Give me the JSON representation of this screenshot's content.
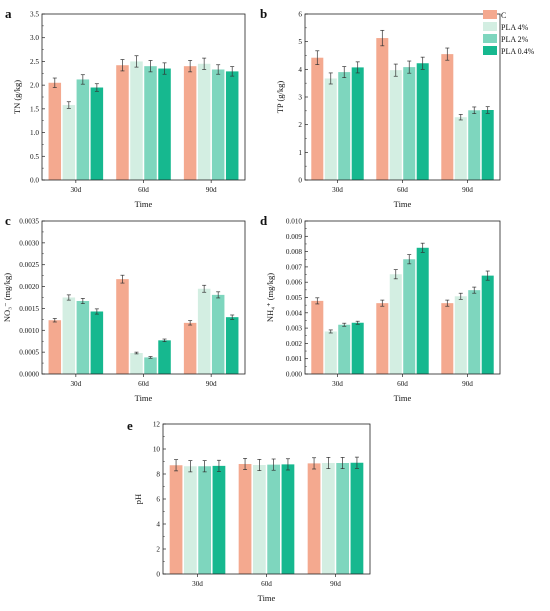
{
  "legend": [
    {
      "name": "C",
      "color": "#f4a98f"
    },
    {
      "name": "PLA 4%",
      "color": "#d3eee2"
    },
    {
      "name": "PLA 2%",
      "color": "#7ed6be"
    },
    {
      "name": "PLA 0.4%",
      "color": "#16b88f"
    }
  ],
  "chart_data": [
    {
      "panel": "a",
      "type": "bar",
      "categories": [
        "30d",
        "60d",
        "90d"
      ],
      "xlabel": "Time",
      "ylabel": "TN (g/kg)",
      "ylim": [
        0,
        3.5
      ],
      "yticks": [
        "0.0",
        "0.5",
        "1.0",
        "1.5",
        "2.0",
        "2.5",
        "3.0",
        "3.5"
      ],
      "series": [
        {
          "name": "C",
          "values": [
            2.05,
            2.42,
            2.4
          ],
          "errors": [
            0.1,
            0.12,
            0.12
          ]
        },
        {
          "name": "PLA 4%",
          "values": [
            1.58,
            2.5,
            2.45
          ],
          "errors": [
            0.07,
            0.12,
            0.12
          ]
        },
        {
          "name": "PLA 2%",
          "values": [
            2.12,
            2.4,
            2.33
          ],
          "errors": [
            0.1,
            0.12,
            0.1
          ]
        },
        {
          "name": "PLA 0.4%",
          "values": [
            1.95,
            2.35,
            2.29
          ],
          "errors": [
            0.08,
            0.12,
            0.1
          ]
        }
      ]
    },
    {
      "panel": "b",
      "type": "bar",
      "categories": [
        "30d",
        "60d",
        "90d"
      ],
      "xlabel": "Time",
      "ylabel": "TP (g/kg)",
      "ylim": [
        0,
        6
      ],
      "yticks": [
        "0",
        "1",
        "2",
        "3",
        "4",
        "5",
        "6"
      ],
      "series": [
        {
          "name": "C",
          "values": [
            4.42,
            5.13,
            4.55
          ],
          "errors": [
            0.25,
            0.28,
            0.22
          ]
        },
        {
          "name": "PLA 4%",
          "values": [
            3.67,
            3.97,
            2.27
          ],
          "errors": [
            0.2,
            0.22,
            0.1
          ]
        },
        {
          "name": "PLA 2%",
          "values": [
            3.9,
            4.08,
            2.52
          ],
          "errors": [
            0.2,
            0.22,
            0.12
          ]
        },
        {
          "name": "PLA 0.4%",
          "values": [
            4.07,
            4.22,
            2.53
          ],
          "errors": [
            0.2,
            0.22,
            0.12
          ]
        }
      ]
    },
    {
      "panel": "c",
      "type": "bar",
      "categories": [
        "30d",
        "60d",
        "90d"
      ],
      "xlabel": "Time",
      "ylabel": "NO₃⁻ (mg/kg)",
      "ylim": [
        0,
        0.0035
      ],
      "yticks": [
        "0.0000",
        "0.0005",
        "0.0010",
        "0.0015",
        "0.0020",
        "0.0025",
        "0.0030",
        "0.0035"
      ],
      "series": [
        {
          "name": "C",
          "values": [
            0.00123,
            0.00217,
            0.00117
          ],
          "errors": [
            4e-05,
            9e-05,
            5e-05
          ]
        },
        {
          "name": "PLA 4%",
          "values": [
            0.00175,
            0.00048,
            0.00195
          ],
          "errors": [
            6e-05,
            2e-05,
            8e-05
          ]
        },
        {
          "name": "PLA 2%",
          "values": [
            0.00167,
            0.00038,
            0.00181
          ],
          "errors": [
            6e-05,
            2e-05,
            7e-05
          ]
        },
        {
          "name": "PLA 0.4%",
          "values": [
            0.00143,
            0.00077,
            0.0013
          ],
          "errors": [
            6e-05,
            3e-05,
            5e-05
          ]
        }
      ]
    },
    {
      "panel": "d",
      "type": "bar",
      "categories": [
        "30d",
        "60d",
        "90d"
      ],
      "xlabel": "Time",
      "ylabel": "NH₄⁺ (mg/kg)",
      "ylim": [
        0,
        0.01
      ],
      "yticks": [
        "0.000",
        "0.001",
        "0.002",
        "0.003",
        "0.004",
        "0.005",
        "0.006",
        "0.007",
        "0.008",
        "0.009",
        "0.010"
      ],
      "series": [
        {
          "name": "C",
          "values": [
            0.00478,
            0.00463,
            0.00463
          ],
          "errors": [
            0.0002,
            0.0002,
            0.0002
          ]
        },
        {
          "name": "PLA 4%",
          "values": [
            0.00278,
            0.00652,
            0.00508
          ],
          "errors": [
            0.0001,
            0.0003,
            0.0002
          ]
        },
        {
          "name": "PLA 2%",
          "values": [
            0.00322,
            0.0075,
            0.00548
          ],
          "errors": [
            0.0001,
            0.0003,
            0.0002
          ]
        },
        {
          "name": "PLA 0.4%",
          "values": [
            0.00335,
            0.00825,
            0.00643
          ],
          "errors": [
            0.0001,
            0.0003,
            0.0003
          ]
        }
      ]
    },
    {
      "panel": "e",
      "type": "bar",
      "categories": [
        "30d",
        "60d",
        "90d"
      ],
      "xlabel": "Time",
      "ylabel": "pH",
      "ylim": [
        0,
        12
      ],
      "yticks": [
        "0",
        "2",
        "4",
        "6",
        "8",
        "10",
        "12"
      ],
      "series": [
        {
          "name": "C",
          "values": [
            8.7,
            8.8,
            8.85
          ],
          "errors": [
            0.45,
            0.45,
            0.45
          ]
        },
        {
          "name": "PLA 4%",
          "values": [
            8.62,
            8.72,
            8.88
          ],
          "errors": [
            0.45,
            0.45,
            0.45
          ]
        },
        {
          "name": "PLA 2%",
          "values": [
            8.62,
            8.75,
            8.88
          ],
          "errors": [
            0.45,
            0.45,
            0.45
          ]
        },
        {
          "name": "PLA 0.4%",
          "values": [
            8.65,
            8.77,
            8.9
          ],
          "errors": [
            0.45,
            0.45,
            0.45
          ]
        }
      ]
    }
  ]
}
